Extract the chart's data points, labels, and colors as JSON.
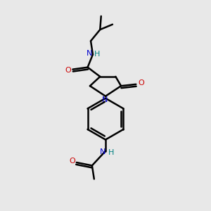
{
  "bg_color": "#e8e8e8",
  "line_color": "#000000",
  "N_color": "#0000cc",
  "H_color": "#008080",
  "O_color": "#cc0000",
  "bond_width": 1.8,
  "figsize": [
    3.0,
    3.0
  ],
  "dpi": 100,
  "xlim": [
    0,
    10
  ],
  "ylim": [
    0,
    10
  ]
}
